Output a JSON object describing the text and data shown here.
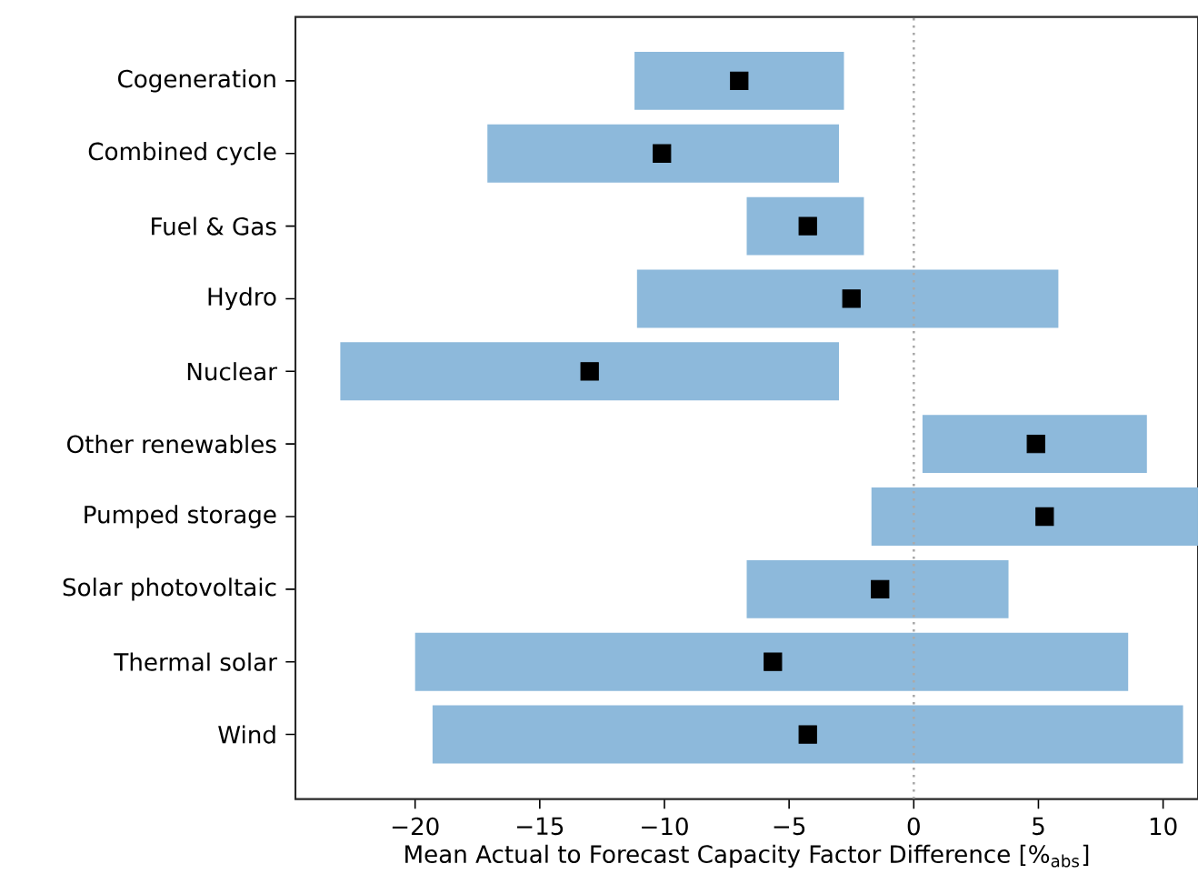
{
  "chart_data": {
    "type": "bar",
    "orientation": "horizontal",
    "xlabel": "Mean Actual to Forecast Capacity Factor Difference [%$_{abs}$]",
    "categories": [
      "Cogeneration",
      "Combined cycle",
      "Fuel & Gas",
      "Hydro",
      "Nuclear",
      "Other renewables",
      "Pumped storage",
      "Solar photovoltaic",
      "Thermal solar",
      "Wind"
    ],
    "xlim": [
      -24.8,
      11.4
    ],
    "xticks": [
      {
        "value": -20,
        "label": "−20"
      },
      {
        "value": -15,
        "label": "−15"
      },
      {
        "value": -10,
        "label": "−10"
      },
      {
        "value": -5,
        "label": "−5"
      },
      0,
      5,
      10
    ],
    "grid": false,
    "ref_lines": [
      {
        "axis": "x",
        "value": 0,
        "color": "#aaaaaa",
        "line_style": "dotted"
      }
    ],
    "series": [
      {
        "color": "#8db9db",
        "base": [
          -11.2,
          -17.1,
          -6.7,
          -11.1,
          -23.0,
          0.35,
          -1.7,
          -6.7,
          -20.0,
          -19.3
        ],
        "values": [
          8.4,
          14.1,
          4.7,
          16.9,
          20.0,
          9.0,
          13.1,
          10.5,
          28.6,
          30.1
        ]
      },
      {
        "type": "scatter",
        "color": "#000000",
        "marker": "square",
        "x": [
          "Cogeneration",
          "Combined cycle",
          "Fuel & Gas",
          "Hydro",
          "Nuclear",
          "Other renewables",
          "Pumped storage",
          "Solar photovoltaic",
          "Thermal solar",
          "Wind"
        ],
        "values": [
          -7.0,
          -10.1,
          -4.25,
          -2.5,
          -13.0,
          4.9,
          5.25,
          -1.35,
          -5.65,
          -4.25
        ]
      }
    ]
  }
}
